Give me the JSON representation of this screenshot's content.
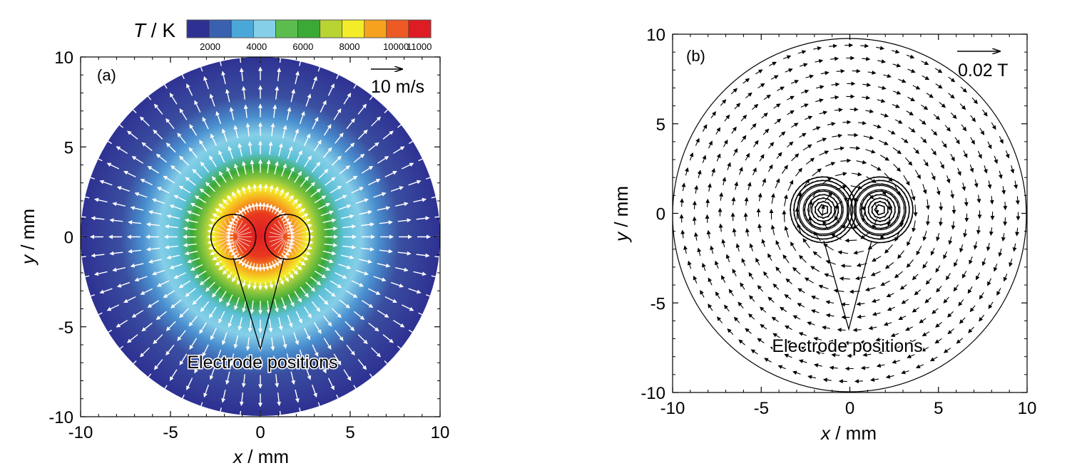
{
  "chart_data": [
    {
      "type": "heatmap",
      "panel_label": "(a)",
      "xlabel_var": "x",
      "xlabel_unit": " / mm",
      "ylabel_var": "y",
      "ylabel_unit": " / mm",
      "xlim": [
        -10,
        10
      ],
      "ylim": [
        -10,
        10
      ],
      "xticks": [
        "-10",
        "-5",
        "0",
        "5",
        "10"
      ],
      "yticks": [
        "-10",
        "-5",
        "0",
        "5",
        "10"
      ],
      "colorbar": {
        "title_var": "T",
        "title_unit": " / K",
        "range": [
          1000,
          11500
        ],
        "tick_labels": [
          "2000",
          "4000",
          "6000",
          "8000",
          "10000",
          "11000"
        ],
        "colors": [
          "#2e3192",
          "#3a60b0",
          "#4aa8d8",
          "#86cfe8",
          "#5bbd4e",
          "#3aa935",
          "#b8d432",
          "#f4ec28",
          "#f6a21e",
          "#ee5a24",
          "#dd1c24"
        ]
      },
      "field": {
        "description": "temperature field",
        "peak_T": 11000,
        "background_T": 1500,
        "domain_radius": 10
      },
      "vector_reference": {
        "label": "10 m/s",
        "value": 10
      },
      "vector_color": "#ffffff",
      "electrodes": [
        {
          "x": -1.5,
          "y": 0,
          "r": 1.25
        },
        {
          "x": 1.5,
          "y": 0,
          "r": 1.25
        }
      ],
      "annotation": {
        "text": "Electrode positions",
        "x": 0,
        "y": -7
      }
    },
    {
      "type": "scatter",
      "panel_label": "(b)",
      "xlabel_var": "x",
      "xlabel_unit": " / mm",
      "ylabel_var": "y",
      "ylabel_unit": " / mm",
      "xlim": [
        -10,
        10
      ],
      "ylim": [
        -10,
        10
      ],
      "xticks": [
        "-10",
        "-5",
        "0",
        "5",
        "10"
      ],
      "yticks": [
        "-10",
        "-5",
        "0",
        "5",
        "10"
      ],
      "vector_reference": {
        "label": "0.02 T",
        "value": 0.02
      },
      "vector_color": "#000000",
      "domain_radius": 10,
      "electrodes": [
        {
          "x": -1.5,
          "y": 0.2,
          "r": 1.25
        },
        {
          "x": 1.7,
          "y": 0.2,
          "r": 1.25
        }
      ],
      "annotation": {
        "text": "Electrode positions",
        "x": 0,
        "y": -7.3
      }
    }
  ]
}
